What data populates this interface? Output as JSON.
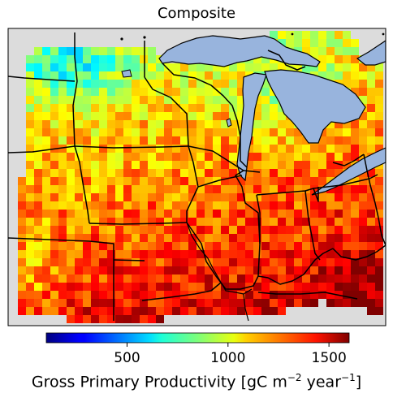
{
  "title": "Composite",
  "colorbar": {
    "label_main": "Gross Primary Productivity [gC m",
    "label_exp1": "−2",
    "label_mid": " year",
    "label_exp2": "−1",
    "label_end": "]",
    "min": 100,
    "max": 1600,
    "ticks": [
      {
        "value": 500,
        "label": "500"
      },
      {
        "value": 1000,
        "label": "1000"
      },
      {
        "value": 1500,
        "label": "1500"
      }
    ],
    "colormap": "jet"
  },
  "colors": {
    "ocean": "#dcdcdc",
    "lakes": "#98b4dd",
    "borders": "#000000"
  }
}
